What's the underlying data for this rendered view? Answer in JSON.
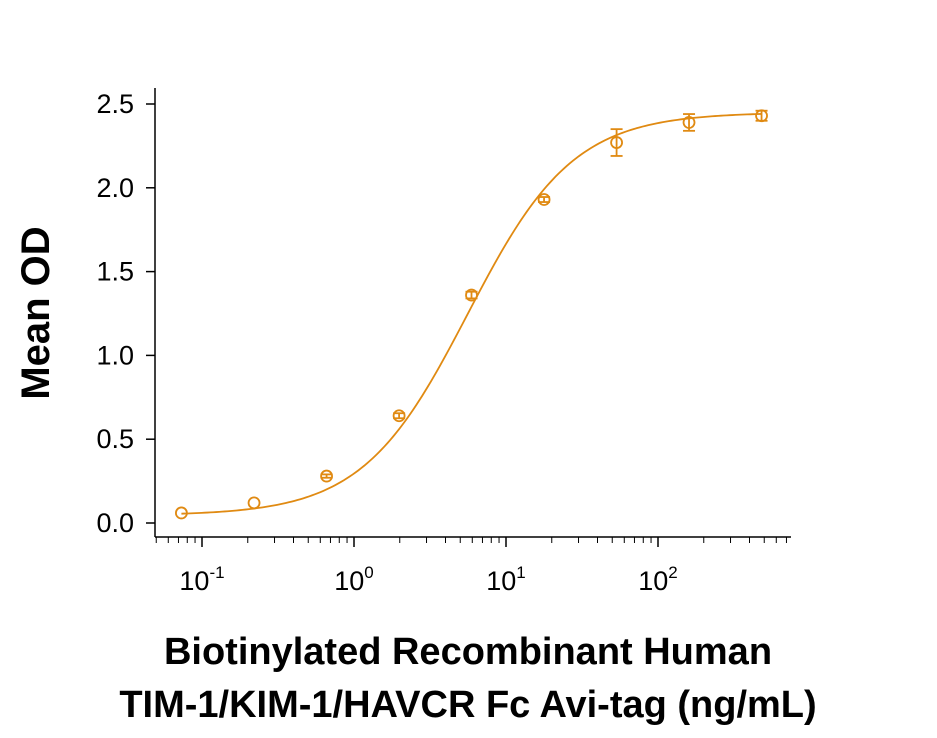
{
  "chart_data": {
    "type": "scatter",
    "xscale": "log",
    "xlim": [
      0.05,
      700
    ],
    "ylim": [
      -0.05,
      2.55
    ],
    "color": "#E08A12",
    "ylabel": "Mean OD",
    "xlabel_lines": [
      "Biotinylated Recombinant Human",
      "TIM-1/KIM-1/HAVCR Fc Avi-tag (ng/mL)"
    ],
    "y_ticks": [
      {
        "value": 0.0,
        "label": "0.0"
      },
      {
        "value": 0.5,
        "label": "0.5"
      },
      {
        "value": 1.0,
        "label": "1.0"
      },
      {
        "value": 1.5,
        "label": "1.5"
      },
      {
        "value": 2.0,
        "label": "2.0"
      },
      {
        "value": 2.5,
        "label": "2.5"
      }
    ],
    "x_ticks": [
      {
        "value": 0.1,
        "base": "10",
        "exp": "-1"
      },
      {
        "value": 1,
        "base": "10",
        "exp": "0"
      },
      {
        "value": 10,
        "base": "10",
        "exp": "1"
      },
      {
        "value": 100,
        "base": "10",
        "exp": "2"
      }
    ],
    "series": [
      {
        "points": [
          {
            "x": 0.0732,
            "y": 0.06,
            "err": 0.0
          },
          {
            "x": 0.22,
            "y": 0.12,
            "err": 0.0
          },
          {
            "x": 0.66,
            "y": 0.28,
            "err": 0.01
          },
          {
            "x": 1.98,
            "y": 0.64,
            "err": 0.015
          },
          {
            "x": 5.93,
            "y": 1.36,
            "err": 0.02
          },
          {
            "x": 17.8,
            "y": 1.93,
            "err": 0.015
          },
          {
            "x": 53.4,
            "y": 2.27,
            "err": 0.08
          },
          {
            "x": 160,
            "y": 2.39,
            "err": 0.05
          },
          {
            "x": 480,
            "y": 2.43,
            "err": 0.03
          }
        ]
      }
    ]
  }
}
